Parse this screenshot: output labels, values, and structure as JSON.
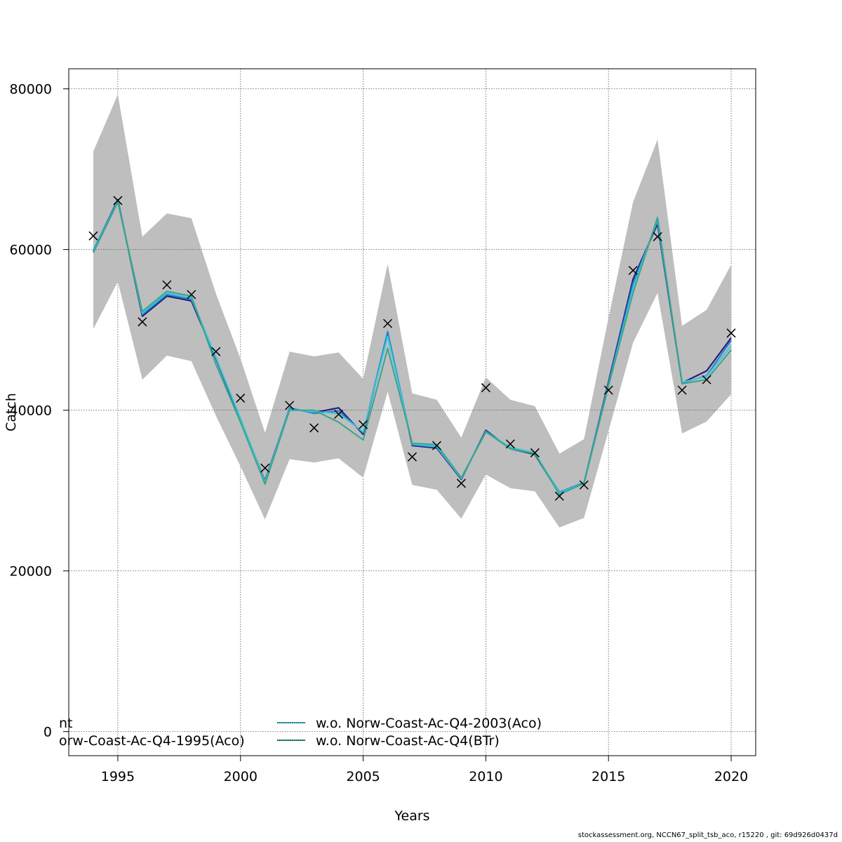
{
  "chart_data": {
    "type": "line",
    "xlabel": "Years",
    "ylabel": "Catch",
    "xlim": [
      1993,
      2021
    ],
    "ylim": [
      -3000,
      82500
    ],
    "xticks": [
      1995,
      2000,
      2005,
      2010,
      2015,
      2020
    ],
    "yticks": [
      0,
      20000,
      40000,
      60000,
      80000
    ],
    "grid": true,
    "x": [
      1994,
      1995,
      1996,
      1997,
      1998,
      1999,
      2000,
      2001,
      2002,
      2003,
      2004,
      2005,
      2006,
      2007,
      2008,
      2009,
      2010,
      2011,
      2012,
      2013,
      2014,
      2015,
      2016,
      2017,
      2018,
      2019,
      2020
    ],
    "observed": [
      61700,
      66100,
      51000,
      55600,
      54400,
      47300,
      41500,
      32800,
      40600,
      37800,
      39500,
      38200,
      50800,
      34200,
      35600,
      30900,
      42800,
      35800,
      34700,
      29300,
      30700,
      42500,
      57400,
      61600,
      42500,
      43800,
      49600
    ],
    "band_upper": [
      72200,
      79300,
      61600,
      64500,
      63900,
      54500,
      46400,
      37200,
      47300,
      46700,
      47200,
      43900,
      58200,
      42100,
      41300,
      36600,
      44100,
      41300,
      40500,
      34600,
      36400,
      51500,
      65900,
      73700,
      50500,
      52500,
      58100
    ],
    "band_lower": [
      50100,
      56000,
      43800,
      46800,
      46100,
      39300,
      33000,
      26400,
      33900,
      33500,
      34000,
      31600,
      42300,
      30700,
      30100,
      26500,
      32000,
      30300,
      29900,
      25400,
      26600,
      37400,
      48400,
      54600,
      37100,
      38600,
      42000
    ],
    "series": [
      {
        "name": "",
        "color": "#2b1b7a",
        "values": [
          59800,
          66200,
          51700,
          54200,
          53600,
          46400,
          38800,
          31200,
          40200,
          39700,
          40300,
          37000,
          49600,
          35600,
          35300,
          31400,
          37500,
          35200,
          34500,
          29600,
          30900,
          43500,
          56300,
          63200,
          43400,
          44900,
          49000
        ]
      },
      {
        "name": "",
        "color": "#1a86d6",
        "values": [
          59900,
          66100,
          51900,
          54400,
          53800,
          46500,
          38900,
          31000,
          40300,
          39600,
          39900,
          37200,
          49800,
          35700,
          35400,
          31500,
          37400,
          35300,
          34600,
          29800,
          31000,
          43300,
          55800,
          63500,
          43400,
          44300,
          48700
        ]
      },
      {
        "name": "w.o. Norw-Coast-Ac-Q4-2003(Aco)",
        "color": "#3fc7d7",
        "values": [
          59700,
          66000,
          52100,
          54600,
          54000,
          46600,
          39000,
          31100,
          40100,
          39800,
          39600,
          37300,
          49200,
          35800,
          35500,
          31500,
          37300,
          35400,
          34700,
          29700,
          30900,
          43000,
          55200,
          63800,
          43500,
          44200,
          48000
        ]
      },
      {
        "name": "w.o. Norw-Coast-Ac-Q4(BTr)",
        "color": "#3aa58a",
        "values": [
          59600,
          65900,
          52300,
          54800,
          54200,
          45700,
          38500,
          30800,
          40000,
          40000,
          38500,
          36300,
          47700,
          35900,
          35700,
          31600,
          37300,
          35200,
          34600,
          29500,
          30900,
          43000,
          54600,
          64000,
          43300,
          43800,
          47500
        ]
      }
    ],
    "legend": {
      "placement": "bottom-left",
      "entries": [
        {
          "label": "nt",
          "color": "#2b1b7a"
        },
        {
          "label": "orw-Coast-Ac-Q4-1995(Aco)",
          "color": "#1a86d6"
        },
        {
          "label": "w.o. Norw-Coast-Ac-Q4-2003(Aco)",
          "color": "#3fc7d7"
        },
        {
          "label": "w.o. Norw-Coast-Ac-Q4(BTr)",
          "color": "#3aa58a"
        }
      ]
    },
    "band_color": "#bebebe"
  },
  "footer": "stockassessment.org, NCCN67_split_tsb_aco, r15220 , git: 69d926d0437d"
}
